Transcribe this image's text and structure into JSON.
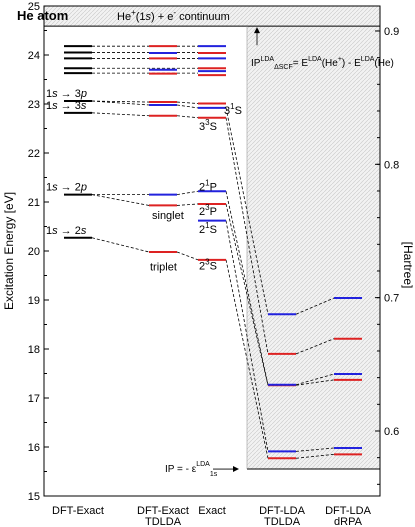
{
  "chart_data": {
    "type": "level_diagram",
    "title": "He atom",
    "continuum_label_parts": [
      "He",
      "+",
      "(1",
      "s",
      ") + e",
      "-",
      " continuum"
    ],
    "ylabel_left": "Excitation Energy [eV]",
    "ylabel_right": "[Hartree]",
    "ylim_ev": [
      15,
      25
    ],
    "ylim_hartree_ticks": [
      0.6,
      0.7,
      0.8,
      0.9
    ],
    "y_ticks_ev": [
      15,
      16,
      17,
      18,
      19,
      20,
      21,
      22,
      23,
      24,
      25
    ],
    "columns": [
      {
        "key": "dft_exact",
        "label": "DFT-Exact",
        "label2": ""
      },
      {
        "key": "dft_exact_tdlda",
        "label": "DFT-Exact",
        "label2": "TDLDA"
      },
      {
        "key": "exact",
        "label": "Exact",
        "label2": ""
      },
      {
        "key": "dft_lda_tdlda",
        "label": "DFT-LDA",
        "label2": "TDLDA"
      },
      {
        "key": "dft_lda_drpa",
        "label": "DFT-LDA",
        "label2": "dRPA"
      }
    ],
    "continuum_ev": 24.59,
    "ip_lda_ev": 15.55,
    "levels": {
      "dft_exact": [
        {
          "e": 20.27,
          "color": "#000000"
        },
        {
          "e": 21.15,
          "color": "#000000"
        },
        {
          "e": 22.82,
          "color": "#000000"
        },
        {
          "e": 23.06,
          "color": "#000000"
        },
        {
          "e": 23.63,
          "color": "#000000"
        },
        {
          "e": 23.73,
          "color": "#000000"
        },
        {
          "e": 23.93,
          "color": "#000000"
        },
        {
          "e": 24.05,
          "color": "#000000"
        },
        {
          "e": 24.18,
          "color": "#000000"
        }
      ],
      "dft_exact_tdlda": [
        {
          "e": 19.98,
          "color": "#dd2222"
        },
        {
          "e": 20.93,
          "color": "#dd2222"
        },
        {
          "e": 21.15,
          "color": "#2222dd"
        },
        {
          "e": 22.76,
          "color": "#dd2222"
        },
        {
          "e": 22.98,
          "color": "#2222dd"
        },
        {
          "e": 23.04,
          "color": "#dd2222"
        },
        {
          "e": 23.62,
          "color": "#dd2222"
        },
        {
          "e": 23.7,
          "color": "#2222dd"
        },
        {
          "e": 23.93,
          "color": "#dd2222"
        },
        {
          "e": 24.04,
          "color": "#2222dd"
        },
        {
          "e": 24.18,
          "color": "#dd2222"
        }
      ],
      "exact": [
        {
          "e": 19.82,
          "color": "#dd2222"
        },
        {
          "e": 20.62,
          "color": "#2222dd"
        },
        {
          "e": 20.96,
          "color": "#dd2222"
        },
        {
          "e": 21.22,
          "color": "#2222dd"
        },
        {
          "e": 22.72,
          "color": "#dd2222"
        },
        {
          "e": 22.92,
          "color": "#2222dd"
        },
        {
          "e": 23.01,
          "color": "#dd2222"
        },
        {
          "e": 23.59,
          "color": "#dd2222"
        },
        {
          "e": 23.67,
          "color": "#2222dd"
        },
        {
          "e": 23.73,
          "color": "#dd2222"
        },
        {
          "e": 23.93,
          "color": "#2222dd"
        },
        {
          "e": 24.04,
          "color": "#dd2222"
        },
        {
          "e": 24.18,
          "color": "#2222dd"
        }
      ],
      "dft_lda_tdlda": [
        {
          "e": 15.77,
          "color": "#dd2222"
        },
        {
          "e": 15.91,
          "color": "#2222dd"
        },
        {
          "e": 17.26,
          "color": "#dd2222"
        },
        {
          "e": 17.27,
          "color": "#2222dd"
        },
        {
          "e": 17.9,
          "color": "#dd2222"
        },
        {
          "e": 18.71,
          "color": "#2222dd"
        }
      ],
      "dft_lda_drpa": [
        {
          "e": 15.85,
          "color": "#dd2222"
        },
        {
          "e": 15.98,
          "color": "#2222dd"
        },
        {
          "e": 17.37,
          "color": "#dd2222"
        },
        {
          "e": 17.49,
          "color": "#2222dd"
        },
        {
          "e": 18.21,
          "color": "#dd2222"
        },
        {
          "e": 19.04,
          "color": "#2222dd"
        }
      ]
    },
    "connectors": [
      [
        0,
        20.27,
        19.98
      ],
      [
        0,
        21.15,
        20.93
      ],
      [
        0,
        21.15,
        21.15
      ],
      [
        0,
        22.82,
        22.76
      ],
      [
        0,
        23.06,
        22.98
      ],
      [
        0,
        23.06,
        23.04
      ],
      [
        1,
        19.98,
        19.82
      ],
      [
        1,
        20.93,
        20.96
      ],
      [
        1,
        21.15,
        21.22
      ],
      [
        1,
        22.76,
        22.72
      ],
      [
        1,
        22.98,
        22.92
      ],
      [
        1,
        23.04,
        23.01
      ],
      [
        2,
        19.82,
        15.77
      ],
      [
        2,
        20.62,
        15.91
      ],
      [
        2,
        20.96,
        17.26
      ],
      [
        2,
        21.22,
        17.27
      ],
      [
        2,
        22.72,
        17.9
      ],
      [
        2,
        22.92,
        18.71
      ],
      [
        3,
        15.77,
        15.85
      ],
      [
        3,
        15.91,
        15.98
      ],
      [
        3,
        17.26,
        17.37
      ],
      [
        3,
        17.27,
        17.49
      ],
      [
        3,
        17.9,
        18.21
      ],
      [
        3,
        18.71,
        19.04
      ]
    ],
    "transition_labels": [
      {
        "from": "1s",
        "to": "2s",
        "e": 20.27
      },
      {
        "from": "1s",
        "to": "2p",
        "e": 21.15
      },
      {
        "from": "1s",
        "to": "3s",
        "e": 22.82
      },
      {
        "from": "1s",
        "to": "3p",
        "e": 23.06
      }
    ],
    "term_labels": [
      {
        "n": "2",
        "mult": "3",
        "L": "S",
        "color": "#dd2222",
        "e": 19.7
      },
      {
        "n": "2",
        "mult": "1",
        "L": "S",
        "color": "#2222dd",
        "e": 20.45
      },
      {
        "n": "2",
        "mult": "3",
        "L": "P",
        "color": "#dd2222",
        "e": 20.82
      },
      {
        "n": "2",
        "mult": "1",
        "L": "P",
        "color": "#2222dd",
        "e": 21.32
      },
      {
        "n": "3",
        "mult": "3",
        "L": "S",
        "color": "#dd2222",
        "e": 22.55
      },
      {
        "n": "3",
        "mult": "1",
        "L": "S",
        "color": "#2222dd",
        "e": 22.88
      }
    ],
    "singlet_label": "singlet",
    "triplet_label": "triplet",
    "singlet_color": "#2222dd",
    "triplet_color": "#dd2222",
    "ip_delta_scf_label": "IP",
    "ip_delta_scf_super": "LDA",
    "ip_delta_scf_sub": "ΔSCF",
    "ip_delta_scf_eq_parts": [
      "= E",
      "LDA",
      "(He",
      "+",
      ") - E",
      "LDA",
      "(He)"
    ],
    "ip_bottom_parts": [
      "IP = - ε",
      "LDA",
      "1s"
    ]
  }
}
